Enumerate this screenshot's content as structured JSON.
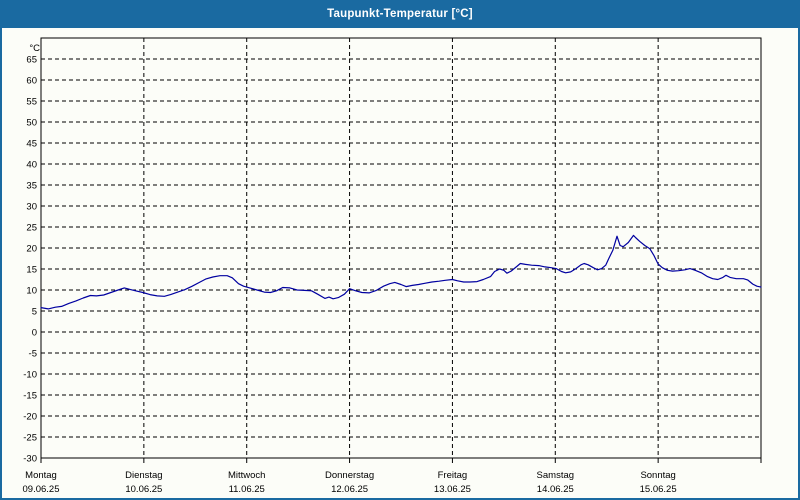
{
  "window": {
    "title": "Taupunkt-Temperatur [°C]",
    "title_bar_color": "#1a6aa1",
    "border_color": "#1a6aa1",
    "background_color": "#fcfdf8"
  },
  "chart_data": {
    "type": "line",
    "title": "Taupunkt-Temperatur [°C]",
    "ylabel": "°C",
    "y_unit_label": "°C",
    "ylim": [
      -30,
      70
    ],
    "y_tick_step": 5,
    "y_tick_labels": [
      65,
      60,
      55,
      50,
      45,
      40,
      35,
      30,
      25,
      20,
      15,
      10,
      5,
      0,
      -5,
      -10,
      -15,
      -20,
      -25,
      -30
    ],
    "grid": "dashed",
    "legend_position": "none",
    "line_color": "#0000a0",
    "grid_color": "#000000",
    "frame_color": "#000000",
    "x_range_days": [
      0,
      7
    ],
    "x_categories": [
      {
        "weekday": "Montag",
        "date": "09.06.25"
      },
      {
        "weekday": "Dienstag",
        "date": "10.06.25"
      },
      {
        "weekday": "Mittwoch",
        "date": "11.06.25"
      },
      {
        "weekday": "Donnerstag",
        "date": "12.06.25"
      },
      {
        "weekday": "Freitag",
        "date": "13.06.25"
      },
      {
        "weekday": "Samstag",
        "date": "14.06.25"
      },
      {
        "weekday": "Sonntag",
        "date": "15.06.25"
      }
    ],
    "series": [
      {
        "name": "Taupunkt-Temperatur",
        "color": "#0000a0",
        "points": [
          [
            0.0,
            5.8
          ],
          [
            0.07,
            5.5
          ],
          [
            0.14,
            5.9
          ],
          [
            0.2,
            6.1
          ],
          [
            0.27,
            6.8
          ],
          [
            0.34,
            7.4
          ],
          [
            0.41,
            8.1
          ],
          [
            0.48,
            8.7
          ],
          [
            0.54,
            8.6
          ],
          [
            0.61,
            8.8
          ],
          [
            0.68,
            9.4
          ],
          [
            0.75,
            10.0
          ],
          [
            0.81,
            10.5
          ],
          [
            0.87,
            10.1
          ],
          [
            0.92,
            9.8
          ],
          [
            0.99,
            9.4
          ],
          [
            1.06,
            8.9
          ],
          [
            1.13,
            8.6
          ],
          [
            1.2,
            8.5
          ],
          [
            1.26,
            8.9
          ],
          [
            1.33,
            9.5
          ],
          [
            1.4,
            10.1
          ],
          [
            1.47,
            10.9
          ],
          [
            1.54,
            11.8
          ],
          [
            1.6,
            12.6
          ],
          [
            1.67,
            13.1
          ],
          [
            1.74,
            13.4
          ],
          [
            1.81,
            13.4
          ],
          [
            1.86,
            12.9
          ],
          [
            1.92,
            11.5
          ],
          [
            1.97,
            10.9
          ],
          [
            2.03,
            10.5
          ],
          [
            2.1,
            10.0
          ],
          [
            2.17,
            9.5
          ],
          [
            2.23,
            9.4
          ],
          [
            2.29,
            9.8
          ],
          [
            2.35,
            10.6
          ],
          [
            2.42,
            10.5
          ],
          [
            2.49,
            10.0
          ],
          [
            2.56,
            9.9
          ],
          [
            2.63,
            9.8
          ],
          [
            2.69,
            9.0
          ],
          [
            2.76,
            8.0
          ],
          [
            2.8,
            8.3
          ],
          [
            2.84,
            7.9
          ],
          [
            2.89,
            8.2
          ],
          [
            2.95,
            9.0
          ],
          [
            3.0,
            10.3
          ],
          [
            3.06,
            9.8
          ],
          [
            3.12,
            9.4
          ],
          [
            3.19,
            9.3
          ],
          [
            3.26,
            9.9
          ],
          [
            3.33,
            10.9
          ],
          [
            3.39,
            11.5
          ],
          [
            3.44,
            11.8
          ],
          [
            3.5,
            11.3
          ],
          [
            3.55,
            10.8
          ],
          [
            3.61,
            11.1
          ],
          [
            3.67,
            11.3
          ],
          [
            3.73,
            11.6
          ],
          [
            3.8,
            11.9
          ],
          [
            3.87,
            12.1
          ],
          [
            3.93,
            12.3
          ],
          [
            4.0,
            12.5
          ],
          [
            4.05,
            12.2
          ],
          [
            4.11,
            11.9
          ],
          [
            4.17,
            11.9
          ],
          [
            4.24,
            12.0
          ],
          [
            4.3,
            12.5
          ],
          [
            4.37,
            13.2
          ],
          [
            4.41,
            14.4
          ],
          [
            4.46,
            15.0
          ],
          [
            4.5,
            14.7
          ],
          [
            4.53,
            14.0
          ],
          [
            4.57,
            14.5
          ],
          [
            4.63,
            15.7
          ],
          [
            4.66,
            16.3
          ],
          [
            4.71,
            16.1
          ],
          [
            4.77,
            15.9
          ],
          [
            4.84,
            15.8
          ],
          [
            4.9,
            15.5
          ],
          [
            4.96,
            15.3
          ],
          [
            5.01,
            15.1
          ],
          [
            5.06,
            14.4
          ],
          [
            5.1,
            14.1
          ],
          [
            5.15,
            14.3
          ],
          [
            5.2,
            15.1
          ],
          [
            5.25,
            16.0
          ],
          [
            5.28,
            16.3
          ],
          [
            5.32,
            16.0
          ],
          [
            5.37,
            15.3
          ],
          [
            5.41,
            14.8
          ],
          [
            5.45,
            15.1
          ],
          [
            5.49,
            15.9
          ],
          [
            5.52,
            17.5
          ],
          [
            5.56,
            19.5
          ],
          [
            5.6,
            22.8
          ],
          [
            5.63,
            20.6
          ],
          [
            5.66,
            20.3
          ],
          [
            5.71,
            21.3
          ],
          [
            5.76,
            23.0
          ],
          [
            5.78,
            22.5
          ],
          [
            5.82,
            21.6
          ],
          [
            5.87,
            20.6
          ],
          [
            5.92,
            19.8
          ],
          [
            5.96,
            18.2
          ],
          [
            6.0,
            16.2
          ],
          [
            6.04,
            15.3
          ],
          [
            6.09,
            14.7
          ],
          [
            6.14,
            14.5
          ],
          [
            6.2,
            14.6
          ],
          [
            6.26,
            14.8
          ],
          [
            6.31,
            15.1
          ],
          [
            6.36,
            14.7
          ],
          [
            6.42,
            14.1
          ],
          [
            6.48,
            13.2
          ],
          [
            6.53,
            12.7
          ],
          [
            6.58,
            12.5
          ],
          [
            6.63,
            13.0
          ],
          [
            6.66,
            13.5
          ],
          [
            6.7,
            13.0
          ],
          [
            6.76,
            12.7
          ],
          [
            6.83,
            12.7
          ],
          [
            6.87,
            12.4
          ],
          [
            6.92,
            11.4
          ],
          [
            6.96,
            10.9
          ],
          [
            7.0,
            10.7
          ]
        ]
      }
    ]
  }
}
